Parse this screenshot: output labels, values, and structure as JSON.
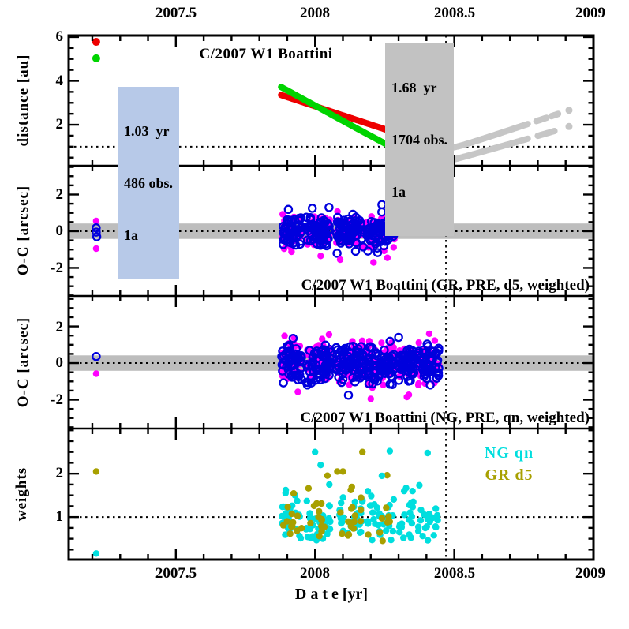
{
  "chart_data": {
    "type": "scatter",
    "title": "C/2007 W1 Boattini",
    "xlabel": "D a t e [yr]",
    "x_range": [
      2007.115,
      2009.0
    ],
    "x_ticks": {
      "major": [
        2007.5,
        2008,
        2008.5,
        2009
      ],
      "labels": [
        "2007.5",
        "2008",
        "2008.5",
        "2009"
      ],
      "minor_step": 0.1
    },
    "vline_x": 2008.47,
    "colors": {
      "red": "#ee0000",
      "green": "#00d400",
      "gray": "#c6c6c6",
      "magenta": "#ff00ff",
      "blue": "#0000dd",
      "cyan": "#00dede",
      "olive": "#a8a000",
      "band": "#bdbdbd",
      "box_blue": "#b7c9e8",
      "box_gray": "#c2c2c2",
      "frame": "#000000"
    },
    "panels": [
      {
        "name": "distance",
        "ylabel": "distance [au]",
        "v_range": [
          0.13,
          6.07
        ],
        "yticks": {
          "major": [
            2,
            4,
            6
          ],
          "labels": [
            "2",
            "4",
            "6"
          ],
          "minor_step": 0.5
        },
        "hline": 1.0,
        "curves": {
          "helio": {
            "q": 0.95,
            "tp": 2008.48,
            "aL": 4.2,
            "aR": 4.24,
            "eps": 0.03
          },
          "geo": {
            "q": 0.26,
            "tp": 2008.42,
            "aL": 7.0,
            "aR": 3.7,
            "eps": 0.05
          }
        },
        "segments": [
          {
            "curve": "helio",
            "color": "red",
            "t0": 2007.878,
            "t1": 2008.272
          },
          {
            "curve": "helio",
            "color": "gray",
            "t0": 2008.279,
            "t1": 2008.452
          },
          {
            "curve": "helio",
            "color": "gray",
            "t0": 2008.492,
            "t1": 2008.765
          },
          {
            "curve": "helio",
            "color": "gray",
            "t0": 2008.795,
            "t1": 2008.833
          },
          {
            "curve": "helio",
            "color": "gray",
            "t0": 2008.849,
            "t1": 2008.876
          },
          {
            "curve": "geo",
            "color": "green",
            "t0": 2007.878,
            "t1": 2008.265
          },
          {
            "curve": "geo",
            "color": "gray",
            "t0": 2008.272,
            "t1": 2008.452
          },
          {
            "curve": "geo",
            "color": "gray",
            "t0": 2008.492,
            "t1": 2008.765
          },
          {
            "curve": "geo",
            "color": "gray",
            "t0": 2008.8,
            "t1": 2008.862
          }
        ],
        "end_dots": [
          {
            "t": 2008.912,
            "v": 2.66,
            "color": "gray"
          },
          {
            "t": 2008.912,
            "v": 1.92,
            "color": "gray"
          }
        ],
        "lone_points": [
          {
            "t": 2007.214,
            "v": 5.78,
            "color": "red"
          },
          {
            "t": 2007.214,
            "v": 5.03,
            "color": "green"
          }
        ],
        "box_left": {
          "lines": [
            "1.03  yr",
            "486 obs.",
            "1a"
          ]
        },
        "box_right": {
          "lines": [
            "1.68  yr",
            "1704 obs.",
            "1a"
          ]
        }
      },
      {
        "name": "oc-gr",
        "ylabel": "O-C [arcsec]",
        "caption": "C/2007 W1 Boattini (GR, PRE, d5, weighted)",
        "v_range": [
          -3.53,
          3.57
        ],
        "yticks": {
          "major": [
            -2,
            0,
            2
          ],
          "labels": [
            "-2",
            "0",
            "2"
          ],
          "minor_step": 0.5
        },
        "hline": 0,
        "band": [
          -0.42,
          0.42
        ],
        "scatter": [
          {
            "color": "magenta",
            "style": "filled",
            "seed": 101,
            "sigma": 0.45,
            "mean": 0,
            "clip": 1.55,
            "clusters": [
              [
                2007.878,
                2007.952,
                50
              ],
              [
                2007.968,
                2008.055,
                62
              ],
              [
                2008.075,
                2008.175,
                66
              ],
              [
                2008.185,
                2008.285,
                68
              ]
            ]
          },
          {
            "color": "blue",
            "style": "open",
            "seed": 202,
            "sigma": 0.42,
            "mean": 0,
            "clip": 1.45,
            "clusters": [
              [
                2007.878,
                2007.952,
                50
              ],
              [
                2007.968,
                2008.055,
                62
              ],
              [
                2008.075,
                2008.175,
                66
              ],
              [
                2008.185,
                2008.285,
                68
              ]
            ]
          }
        ],
        "extra_points": [
          {
            "t": 2008.02,
            "v": -1.35,
            "color": "magenta",
            "style": "filled"
          },
          {
            "t": 2008.09,
            "v": -1.55,
            "color": "magenta",
            "style": "filled"
          },
          {
            "t": 2008.21,
            "v": -1.7,
            "color": "magenta",
            "style": "filled"
          },
          {
            "t": 2008.26,
            "v": -1.45,
            "color": "magenta",
            "style": "filled"
          },
          {
            "t": 2007.99,
            "v": 1.25,
            "color": "blue",
            "style": "open"
          },
          {
            "t": 2008.05,
            "v": 1.3,
            "color": "blue",
            "style": "open"
          },
          {
            "t": 2008.24,
            "v": 1.45,
            "color": "blue",
            "style": "open"
          }
        ],
        "lone_points": [
          {
            "t": 2007.214,
            "v": 0.56,
            "color": "magenta",
            "style": "filled"
          },
          {
            "t": 2007.214,
            "v": -0.95,
            "color": "magenta",
            "style": "filled"
          },
          {
            "t": 2007.214,
            "v": 0.18,
            "color": "blue",
            "style": "open"
          },
          {
            "t": 2007.214,
            "v": -0.05,
            "color": "blue",
            "style": "open"
          },
          {
            "t": 2007.216,
            "v": -0.3,
            "color": "blue",
            "style": "open"
          }
        ]
      },
      {
        "name": "oc-ng",
        "ylabel": "O-C [arcsec]",
        "caption": "C/2007 W1 Boattini (NG, PRE, qn, weighted)",
        "v_range": [
          -3.57,
          3.66
        ],
        "yticks": {
          "major": [
            -2,
            0,
            2
          ],
          "labels": [
            "-2",
            "0",
            "2"
          ],
          "minor_step": 0.5
        },
        "hline": 0,
        "band": [
          -0.42,
          0.42
        ],
        "scatter": [
          {
            "color": "magenta",
            "style": "filled",
            "seed": 303,
            "sigma": 0.55,
            "mean": 0.03,
            "clip": 1.9,
            "clusters": [
              [
                2007.878,
                2007.952,
                50
              ],
              [
                2007.968,
                2008.055,
                62
              ],
              [
                2008.075,
                2008.175,
                68
              ],
              [
                2008.185,
                2008.285,
                70
              ],
              [
                2008.298,
                2008.355,
                45
              ],
              [
                2008.368,
                2008.445,
                50
              ]
            ]
          },
          {
            "color": "blue",
            "style": "open",
            "seed": 404,
            "sigma": 0.5,
            "mean": -0.08,
            "clip": 1.8,
            "clusters": [
              [
                2007.878,
                2007.952,
                50
              ],
              [
                2007.968,
                2008.055,
                62
              ],
              [
                2008.075,
                2008.175,
                68
              ],
              [
                2008.185,
                2008.285,
                70
              ],
              [
                2008.298,
                2008.355,
                45
              ],
              [
                2008.368,
                2008.445,
                50
              ]
            ]
          }
        ],
        "extra_points": [
          {
            "t": 2008.41,
            "v": 1.6,
            "color": "magenta",
            "style": "filled"
          },
          {
            "t": 2008.2,
            "v": -1.95,
            "color": "magenta",
            "style": "filled"
          },
          {
            "t": 2008.33,
            "v": -1.85,
            "color": "magenta",
            "style": "filled"
          },
          {
            "t": 2008.05,
            "v": 1.55,
            "color": "magenta",
            "style": "filled"
          },
          {
            "t": 2008.3,
            "v": 1.4,
            "color": "blue",
            "style": "open"
          },
          {
            "t": 2008.12,
            "v": -1.75,
            "color": "blue",
            "style": "open"
          }
        ],
        "lone_points": [
          {
            "t": 2007.214,
            "v": 0.36,
            "color": "blue",
            "style": "open"
          },
          {
            "t": 2007.214,
            "v": -0.58,
            "color": "magenta",
            "style": "filled"
          }
        ]
      },
      {
        "name": "weights",
        "ylabel": "weights",
        "v_range": [
          0.02,
          3.04
        ],
        "yticks": {
          "major": [
            1,
            2
          ],
          "labels": [
            "1",
            "2"
          ],
          "minor_step": 0.25
        },
        "hline": 1.0,
        "legend": [
          {
            "label": "NG qn",
            "color": "cyan"
          },
          {
            "label": "GR d5",
            "color": "olive"
          }
        ],
        "scatter": [
          {
            "color": "cyan",
            "style": "filled",
            "seed": 505,
            "dist": "weights",
            "base": 0.9,
            "spread": 0.33,
            "min": 0.38,
            "max": 2.52,
            "clusters": [
              [
                2007.878,
                2007.952,
                26
              ],
              [
                2007.968,
                2008.055,
                30
              ],
              [
                2008.075,
                2008.175,
                32
              ],
              [
                2008.185,
                2008.285,
                30
              ],
              [
                2008.298,
                2008.355,
                18
              ],
              [
                2008.368,
                2008.445,
                22
              ]
            ]
          },
          {
            "color": "olive",
            "style": "filled",
            "seed": 606,
            "dist": "weights",
            "base": 0.95,
            "spread": 0.33,
            "min": 0.45,
            "max": 2.3,
            "clusters": [
              [
                2007.878,
                2007.952,
                12
              ],
              [
                2007.968,
                2008.055,
                15
              ],
              [
                2008.075,
                2008.175,
                16
              ],
              [
                2008.185,
                2008.27,
                9
              ]
            ]
          }
        ],
        "extra_points": [
          {
            "t": 2008.17,
            "v": 2.5,
            "color": "olive",
            "style": "filled"
          },
          {
            "t": 2008.0,
            "v": 2.5,
            "color": "cyan",
            "style": "filled"
          },
          {
            "t": 2008.02,
            "v": 2.2,
            "color": "cyan",
            "style": "filled"
          },
          {
            "t": 2008.08,
            "v": 2.05,
            "color": "olive",
            "style": "filled"
          },
          {
            "t": 2008.1,
            "v": 2.05,
            "color": "olive",
            "style": "filled"
          },
          {
            "t": 2008.24,
            "v": 1.95,
            "color": "cyan",
            "style": "filled"
          },
          {
            "t": 2008.32,
            "v": 1.6,
            "color": "cyan",
            "style": "filled"
          },
          {
            "t": 2008.35,
            "v": 1.6,
            "color": "cyan",
            "style": "filled"
          }
        ],
        "lone_points": [
          {
            "t": 2007.214,
            "v": 2.05,
            "color": "olive",
            "style": "filled"
          },
          {
            "t": 2007.214,
            "v": 0.16,
            "color": "cyan",
            "style": "filled"
          }
        ]
      }
    ]
  }
}
